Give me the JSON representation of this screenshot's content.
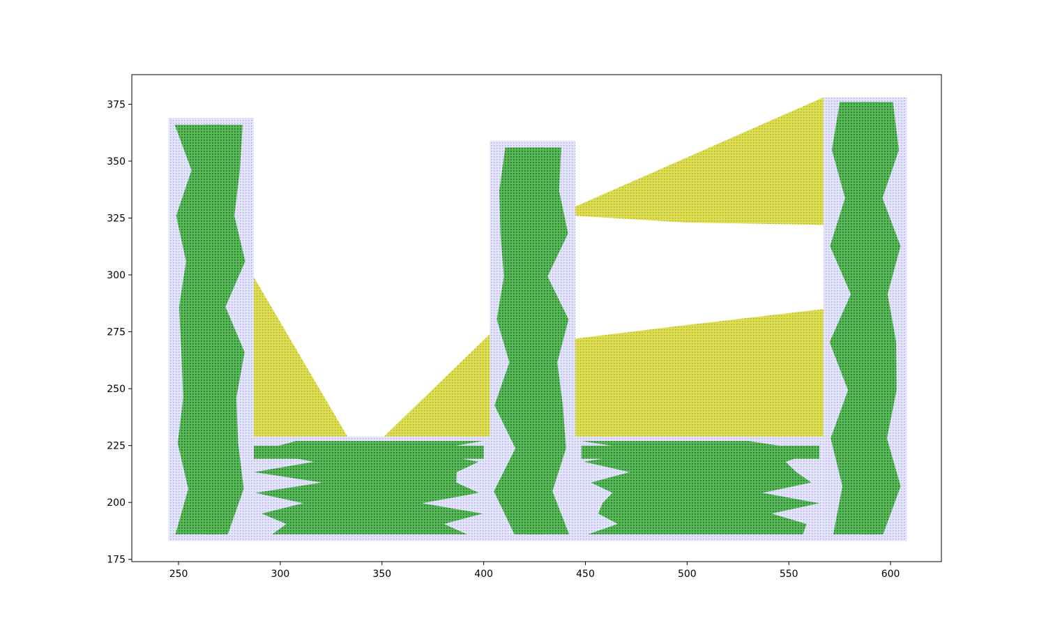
{
  "chart_data": {
    "type": "scatter",
    "title": "",
    "xlabel": "",
    "ylabel": "",
    "xlim": [
      227,
      625
    ],
    "ylim": [
      174,
      388
    ],
    "grid": false,
    "legend": "none",
    "x_ticks": [
      250,
      300,
      350,
      400,
      450,
      500,
      550,
      600
    ],
    "y_ticks": [
      175,
      200,
      225,
      250,
      275,
      300,
      325,
      350,
      375
    ],
    "series": [
      {
        "role": "grid points",
        "marker": "dot",
        "color": "#b3b3f2",
        "regions": [
          {
            "x": [
              245,
              287
            ],
            "y": [
              183,
              369
            ]
          },
          {
            "x": [
              287,
              403
            ],
            "y": [
              183,
              229
            ]
          },
          {
            "x": [
              403,
              445
            ],
            "y": [
              183,
              359
            ]
          },
          {
            "x": [
              445,
              567
            ],
            "y": [
              183,
              229
            ]
          },
          {
            "x": [
              567,
              608
            ],
            "y": [
              183,
              378
            ]
          }
        ]
      },
      {
        "role": "free space points",
        "marker": "dot",
        "color": "#1f9a1f",
        "bands": [
          {
            "x": [
              248,
              283
            ],
            "y": [
              186,
              366
            ]
          },
          {
            "x": [
              287,
              400
            ],
            "y": [
              186,
              227
            ]
          },
          {
            "x": [
              405,
              442
            ],
            "y": [
              186,
              356
            ]
          },
          {
            "x": [
              448,
              565
            ],
            "y": [
              186,
              227
            ]
          },
          {
            "x": [
              570,
              605
            ],
            "y": [
              186,
              376
            ]
          }
        ]
      },
      {
        "role": "connector regions",
        "marker": "dot",
        "color": "#cccc33",
        "polygons": [
          [
            [
              287,
              229
            ],
            [
              287,
              299
            ],
            [
              333,
              229
            ]
          ],
          [
            [
              351,
              229
            ],
            [
              403,
              274
            ],
            [
              403,
              229
            ]
          ],
          [
            [
              445,
              229
            ],
            [
              445,
              272
            ],
            [
              500,
              278
            ],
            [
              567,
              285
            ],
            [
              567,
              229
            ]
          ],
          [
            [
              445,
              330
            ],
            [
              567,
              378
            ],
            [
              567,
              322
            ],
            [
              500,
              323
            ],
            [
              445,
              326
            ]
          ]
        ]
      }
    ]
  }
}
